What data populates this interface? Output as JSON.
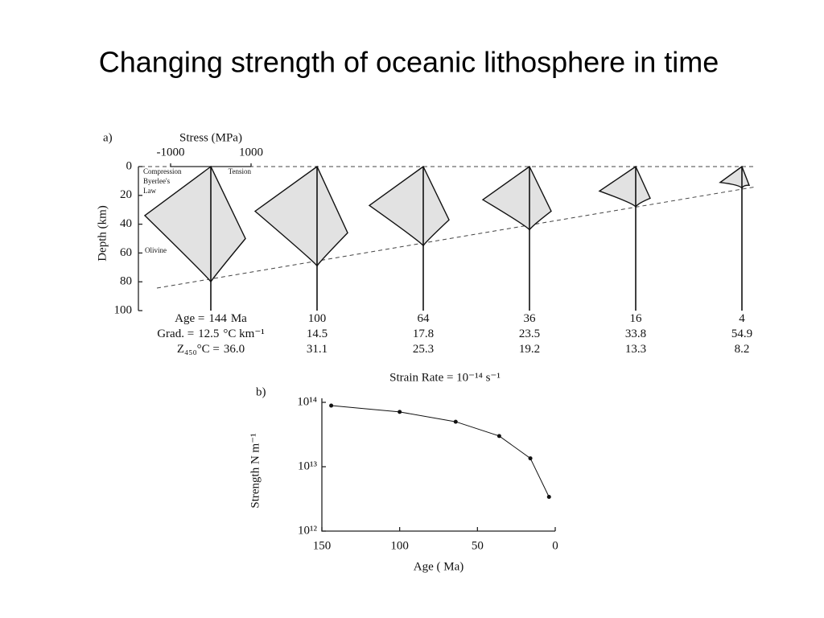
{
  "title": "Changing strength of oceanic lithosphere in time",
  "chart_data": [
    {
      "type": "envelope",
      "panel": "a)",
      "x_label": "Stress (MPa)",
      "xticks": [
        -1000,
        1000
      ],
      "y_label": "Depth (km)",
      "ylim": [
        0,
        100
      ],
      "yticks": [
        0,
        20,
        40,
        60,
        80,
        100
      ],
      "annotations": [
        "Compression",
        "Tension",
        "Byerlee's",
        "Law",
        "Olivine"
      ],
      "age_label": "Age =",
      "age_unit": "Ma",
      "grad_label": "Grad. =",
      "grad_unit": "°C km⁻¹",
      "z_label": "Z₄₅₀°C =",
      "ages": [
        144,
        100,
        64,
        36,
        16,
        4
      ],
      "gradients": [
        12.5,
        14.5,
        17.8,
        23.5,
        33.8,
        54.9
      ],
      "z450": [
        36.0,
        31.1,
        25.3,
        19.2,
        13.3,
        8.2
      ],
      "z450_labels": [
        "36.0",
        "31.1",
        "25.3",
        "19.2",
        "13.3",
        "8.2"
      ],
      "envelopes": [
        {
          "compression": -1640,
          "compression_depth": 34,
          "tension": 860,
          "tension_depth": 50,
          "base_depth": 80
        },
        {
          "compression": -1540,
          "compression_depth": 31,
          "tension": 760,
          "tension_depth": 46,
          "base_depth": 69
        },
        {
          "compression": -1340,
          "compression_depth": 27,
          "tension": 640,
          "tension_depth": 37,
          "base_depth": 55
        },
        {
          "compression": -1160,
          "compression_depth": 23,
          "tension": 540,
          "tension_depth": 31,
          "base_depth": 44
        },
        {
          "compression": -900,
          "compression_depth": 17,
          "tension": 360,
          "tension_depth": 22,
          "base_depth": 28
        },
        {
          "compression": -540,
          "compression_depth": 11,
          "tension": 180,
          "tension_depth": 13,
          "base_depth": 15
        }
      ]
    },
    {
      "type": "line",
      "panel": "b)",
      "title": "Strain Rate = 10⁻¹⁴ s⁻¹",
      "x_label": "Age ( Ma)",
      "y_label": "Strength N m⁻¹",
      "x": [
        144,
        100,
        64,
        36,
        16,
        4
      ],
      "values": [
        89000000000000,
        71000000000000,
        50000000000000,
        30000000000000,
        13500000000000,
        3400000000000
      ],
      "color": "#111",
      "xlim": [
        150,
        0
      ],
      "xticks": [
        150,
        100,
        50,
        0
      ],
      "ylim": [
        1000000000000,
        100000000000000
      ],
      "y_log": true,
      "yticks": [
        {
          "value": 1000000000000,
          "label": "10¹²"
        },
        {
          "value": 10000000000000,
          "label": "10¹³"
        },
        {
          "value": 100000000000000,
          "label": "10¹⁴"
        }
      ]
    }
  ]
}
